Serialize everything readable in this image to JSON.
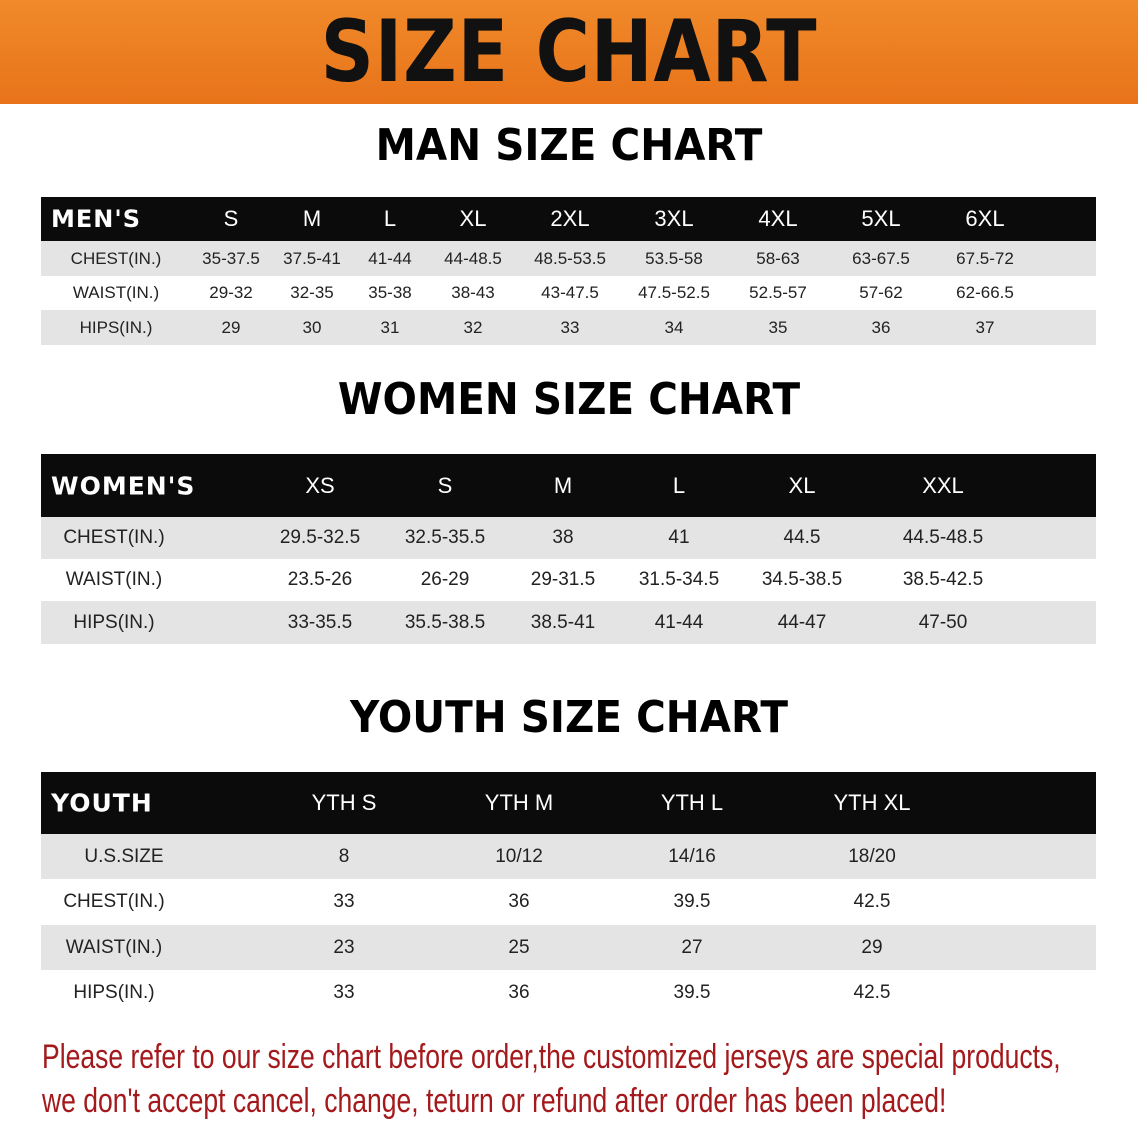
{
  "banner": {
    "title": "SIZE CHART",
    "color": "#e9771d"
  },
  "men": {
    "title": "MAN SIZE CHART",
    "headers": [
      "MEN'S",
      "S",
      "M",
      "L",
      "XL",
      "2XL",
      "3XL",
      "4XL",
      "5XL",
      "6XL"
    ],
    "rows": [
      [
        "CHEST(IN.)",
        "35-37.5",
        "37.5-41",
        "41-44",
        "44-48.5",
        "48.5-53.5",
        "53.5-58",
        "58-63",
        "63-67.5",
        "67.5-72"
      ],
      [
        "WAIST(IN.)",
        "29-32",
        "32-35",
        "35-38",
        "38-43",
        "43-47.5",
        "47.5-52.5",
        "52.5-57",
        "57-62",
        "62-66.5"
      ],
      [
        "HIPS(IN.)",
        "29",
        "30",
        "31",
        "32",
        "33",
        "34",
        "35",
        "36",
        "37"
      ]
    ]
  },
  "women": {
    "title": "WOMEN SIZE CHART",
    "headers": [
      "WOMEN'S",
      "XS",
      "S",
      "M",
      "L",
      "XL",
      "XXL"
    ],
    "rows": [
      [
        "CHEST(IN.)",
        "29.5-32.5",
        "32.5-35.5",
        "38",
        "41",
        "44.5",
        "44.5-48.5"
      ],
      [
        "WAIST(IN.)",
        "23.5-26",
        "26-29",
        "29-31.5",
        "31.5-34.5",
        "34.5-38.5",
        "38.5-42.5"
      ],
      [
        "HIPS(IN.)",
        "33-35.5",
        "35.5-38.5",
        "38.5-41",
        "41-44",
        "44-47",
        "47-50"
      ]
    ]
  },
  "youth": {
    "title": "YOUTH SIZE CHART",
    "headers": [
      "YOUTH",
      "YTH S",
      "YTH M",
      "YTH L",
      "YTH XL"
    ],
    "rows": [
      [
        "U.S.SIZE",
        "8",
        "10/12",
        "14/16",
        "18/20"
      ],
      [
        "CHEST(IN.)",
        "33",
        "36",
        "39.5",
        "42.5"
      ],
      [
        "WAIST(IN.)",
        "23",
        "25",
        "27",
        "29"
      ],
      [
        "HIPS(IN.)",
        "33",
        "36",
        "39.5",
        "42.5"
      ]
    ]
  },
  "note": {
    "line1": "Please refer to our size chart before order,the customized jerseys are special products,",
    "line2": "we don't accept cancel, change, teturn or refund after order has been placed!",
    "color": "#a3191c"
  }
}
